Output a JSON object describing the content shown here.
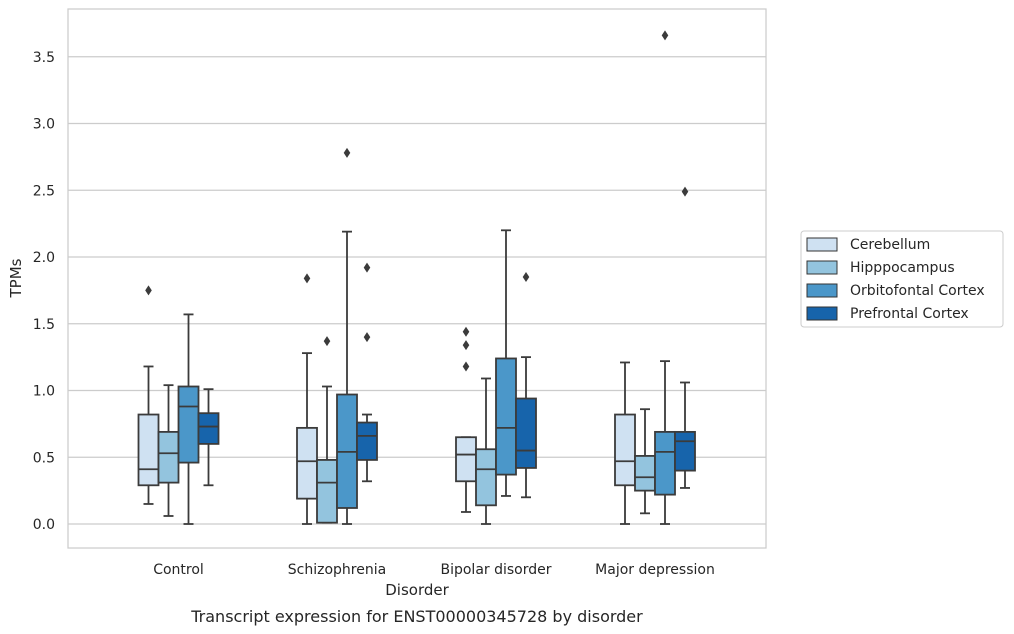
{
  "chart_data": {
    "type": "box",
    "caption": "Transcript expression for ENST00000345728 by disorder",
    "xlabel": "Disorder",
    "ylabel": "TPMs",
    "ylim": [
      -0.18,
      3.85
    ],
    "yticks": [
      0.0,
      0.5,
      1.0,
      1.5,
      2.0,
      2.5,
      3.0,
      3.5
    ],
    "ytick_labels": [
      "0.0",
      "0.5",
      "1.0",
      "1.5",
      "2.0",
      "2.5",
      "3.0",
      "3.5"
    ],
    "grid": "horizontal",
    "legend_position": "right",
    "categories": [
      "Control",
      "Schizophrenia",
      "Bipolar disorder",
      "Major depression"
    ],
    "series": [
      {
        "name": "Cerebellum",
        "color": "#cfe1f2",
        "boxes": [
          {
            "whislo": 0.15,
            "q1": 0.29,
            "med": 0.41,
            "q3": 0.82,
            "whishi": 1.18,
            "fliers": [
              1.75
            ]
          },
          {
            "whislo": 0.0,
            "q1": 0.19,
            "med": 0.47,
            "q3": 0.72,
            "whishi": 1.28,
            "fliers": [
              1.84
            ]
          },
          {
            "whislo": 0.09,
            "q1": 0.32,
            "med": 0.52,
            "q3": 0.65,
            "whishi": 0.65,
            "fliers": [
              1.18,
              1.34,
              1.44
            ]
          },
          {
            "whislo": 0.0,
            "q1": 0.29,
            "med": 0.47,
            "q3": 0.82,
            "whishi": 1.21,
            "fliers": []
          }
        ]
      },
      {
        "name": "Hipppocampus",
        "color": "#93c4de",
        "boxes": [
          {
            "whislo": 0.06,
            "q1": 0.31,
            "med": 0.53,
            "q3": 0.69,
            "whishi": 1.04,
            "fliers": []
          },
          {
            "whislo": 0.01,
            "q1": 0.01,
            "med": 0.31,
            "q3": 0.48,
            "whishi": 1.03,
            "fliers": [
              1.37
            ]
          },
          {
            "whislo": 0.0,
            "q1": 0.14,
            "med": 0.41,
            "q3": 0.56,
            "whishi": 1.09,
            "fliers": []
          },
          {
            "whislo": 0.08,
            "q1": 0.25,
            "med": 0.35,
            "q3": 0.51,
            "whishi": 0.86,
            "fliers": []
          }
        ]
      },
      {
        "name": "Orbitofontal Cortex",
        "color": "#4b97c9",
        "boxes": [
          {
            "whislo": 0.0,
            "q1": 0.46,
            "med": 0.88,
            "q3": 1.03,
            "whishi": 1.57,
            "fliers": []
          },
          {
            "whislo": 0.0,
            "q1": 0.12,
            "med": 0.54,
            "q3": 0.97,
            "whishi": 2.19,
            "fliers": [
              2.78
            ]
          },
          {
            "whislo": 0.21,
            "q1": 0.37,
            "med": 0.72,
            "q3": 1.24,
            "whishi": 2.2,
            "fliers": []
          },
          {
            "whislo": 0.0,
            "q1": 0.22,
            "med": 0.54,
            "q3": 0.69,
            "whishi": 1.22,
            "fliers": [
              3.66
            ]
          }
        ]
      },
      {
        "name": "Prefrontal Cortex",
        "color": "#1764ab",
        "boxes": [
          {
            "whislo": 0.29,
            "q1": 0.6,
            "med": 0.73,
            "q3": 0.83,
            "whishi": 1.01,
            "fliers": []
          },
          {
            "whislo": 0.32,
            "q1": 0.48,
            "med": 0.66,
            "q3": 0.76,
            "whishi": 0.82,
            "fliers": [
              1.4,
              1.92
            ]
          },
          {
            "whislo": 0.2,
            "q1": 0.42,
            "med": 0.55,
            "q3": 0.94,
            "whishi": 1.25,
            "fliers": [
              1.85
            ]
          },
          {
            "whislo": 0.27,
            "q1": 0.4,
            "med": 0.62,
            "q3": 0.69,
            "whishi": 1.06,
            "fliers": [
              2.49
            ]
          }
        ]
      }
    ]
  }
}
